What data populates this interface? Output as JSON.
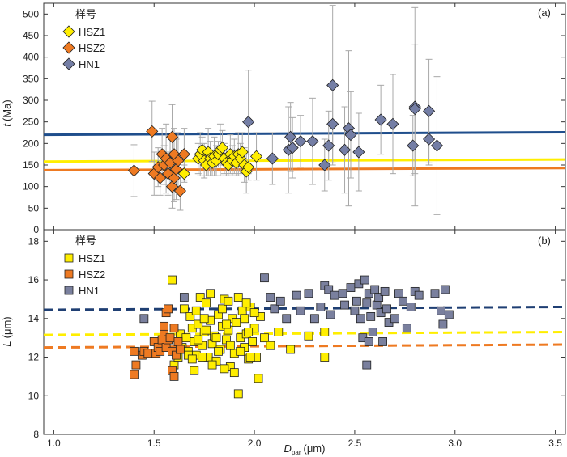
{
  "chart_data": [
    {
      "id": "a",
      "type": "scatter",
      "panel_label": "(a)",
      "ylabel_var": "t",
      "ylabel_unit": "(Ma)",
      "ylim": [
        0,
        525
      ],
      "yticks": [
        0,
        50,
        100,
        150,
        200,
        250,
        300,
        350,
        400,
        450,
        500
      ],
      "xlim": [
        0.95,
        3.55
      ],
      "legend_title": "样号",
      "legend_position": "top-left",
      "series": [
        {
          "name": "HSZ1",
          "color": "#ffee00",
          "marker": "diamond",
          "errorbars": true,
          "points": [
            [
              1.65,
              130,
              20
            ],
            [
              1.72,
              165,
              35
            ],
            [
              1.73,
              175,
              50
            ],
            [
              1.74,
              185,
              30
            ],
            [
              1.75,
              160,
              40
            ],
            [
              1.76,
              150,
              25
            ],
            [
              1.77,
              180,
              55
            ],
            [
              1.78,
              165,
              40
            ],
            [
              1.79,
              155,
              30
            ],
            [
              1.8,
              170,
              45
            ],
            [
              1.81,
              160,
              35
            ],
            [
              1.82,
              175,
              30
            ],
            [
              1.83,
              185,
              60
            ],
            [
              1.84,
              190,
              40
            ],
            [
              1.85,
              165,
              35
            ],
            [
              1.86,
              155,
              30
            ],
            [
              1.87,
              150,
              25
            ],
            [
              1.88,
              175,
              45
            ],
            [
              1.89,
              160,
              35
            ],
            [
              1.9,
              170,
              40
            ],
            [
              1.91,
              155,
              30
            ],
            [
              1.92,
              175,
              50
            ],
            [
              1.93,
              165,
              35
            ],
            [
              1.94,
              180,
              45
            ],
            [
              1.95,
              150,
              40
            ],
            [
              1.96,
              135,
              50
            ],
            [
              1.97,
              145,
              30
            ],
            [
              2.01,
              170,
              55
            ]
          ]
        },
        {
          "name": "HSZ2",
          "color": "#ee7a22",
          "marker": "diamond",
          "errorbars": true,
          "points": [
            [
              1.4,
              137,
              60
            ],
            [
              1.49,
              228,
              70
            ],
            [
              1.5,
              130,
              50
            ],
            [
              1.52,
              145,
              45
            ],
            [
              1.53,
              120,
              40
            ],
            [
              1.54,
              175,
              60
            ],
            [
              1.55,
              150,
              45
            ],
            [
              1.56,
              165,
              80
            ],
            [
              1.57,
              130,
              50
            ],
            [
              1.58,
              155,
              60
            ],
            [
              1.59,
              100,
              50
            ],
            [
              1.6,
              120,
              55
            ],
            [
              1.6,
              175,
              60
            ],
            [
              1.61,
              140,
              70
            ],
            [
              1.62,
              160,
              65
            ],
            [
              1.63,
              90,
              45
            ],
            [
              1.65,
              175,
              60
            ],
            [
              1.59,
              215,
              75
            ]
          ]
        },
        {
          "name": "HN1",
          "color": "#747ea5",
          "marker": "diamond",
          "errorbars": true,
          "points": [
            [
              1.97,
              250,
              120
            ],
            [
              2.09,
              165,
              60
            ],
            [
              2.17,
              185,
              100
            ],
            [
              2.18,
              215,
              80
            ],
            [
              2.19,
              190,
              70
            ],
            [
              2.23,
              205,
              60
            ],
            [
              2.29,
              205,
              100
            ],
            [
              2.35,
              150,
              60
            ],
            [
              2.37,
              195,
              80
            ],
            [
              2.39,
              335,
              185
            ],
            [
              2.39,
              245,
              90
            ],
            [
              2.45,
              185,
              100
            ],
            [
              2.47,
              235,
              180
            ],
            [
              2.48,
              220,
              100
            ],
            [
              2.52,
              180,
              90
            ],
            [
              2.63,
              255,
              80
            ],
            [
              2.69,
              245,
              115
            ],
            [
              2.79,
              195,
              70
            ],
            [
              2.8,
              285,
              230
            ],
            [
              2.8,
              280,
              150
            ],
            [
              2.87,
              210,
              60
            ],
            [
              2.87,
              275,
              120
            ],
            [
              2.91,
              195,
              160
            ]
          ]
        }
      ],
      "reference_lines": [
        {
          "series": "HSZ1",
          "color": "#ffee00",
          "style": "solid",
          "y": [
            158,
            163
          ]
        },
        {
          "series": "HSZ2",
          "color": "#ee7a22",
          "style": "solid",
          "y": [
            138,
            143
          ]
        },
        {
          "series": "HN1",
          "color": "#1f4e8c",
          "style": "solid",
          "y": [
            220,
            226
          ]
        }
      ]
    },
    {
      "id": "b",
      "type": "scatter",
      "panel_label": "(b)",
      "ylabel_var": "L",
      "ylabel_unit": "(μm)",
      "ylim": [
        8,
        18.6
      ],
      "yticks": [
        8,
        10,
        12,
        14,
        16,
        18
      ],
      "xlim": [
        0.95,
        3.55
      ],
      "xticks": [
        "1.0",
        "1.5",
        "2.0",
        "2.5",
        "3.0",
        "3.5"
      ],
      "xlabel_var": "D",
      "xlabel_sub": "par",
      "xlabel_unit": "(μm)",
      "legend_title": "样号",
      "legend_position": "top-left",
      "series": [
        {
          "name": "HSZ1",
          "color": "#ffee00",
          "marker": "square",
          "points": [
            [
              1.59,
              16.0
            ],
            [
              1.6,
              11.6
            ],
            [
              1.62,
              12.0
            ],
            [
              1.63,
              13.2
            ],
            [
              1.64,
              12.5
            ],
            [
              1.65,
              14.5
            ],
            [
              1.66,
              13.0
            ],
            [
              1.67,
              12.3
            ],
            [
              1.68,
              14.1
            ],
            [
              1.69,
              13.5
            ],
            [
              1.7,
              12.8
            ],
            [
              1.71,
              12.1
            ],
            [
              1.72,
              13.7
            ],
            [
              1.73,
              15.1
            ],
            [
              1.74,
              12.6
            ],
            [
              1.75,
              13.3
            ],
            [
              1.76,
              14.8
            ],
            [
              1.77,
              12.0
            ],
            [
              1.78,
              13.9
            ],
            [
              1.79,
              12.7
            ],
            [
              1.8,
              13.1
            ],
            [
              1.81,
              11.8
            ],
            [
              1.82,
              14.2
            ],
            [
              1.83,
              12.4
            ],
            [
              1.84,
              13.6
            ],
            [
              1.85,
              15.0
            ],
            [
              1.86,
              12.9
            ],
            [
              1.87,
              13.4
            ],
            [
              1.88,
              11.5
            ],
            [
              1.89,
              14.0
            ],
            [
              1.9,
              12.2
            ],
            [
              1.91,
              13.8
            ],
            [
              1.92,
              10.1
            ],
            [
              1.93,
              13.0
            ],
            [
              1.94,
              14.4
            ],
            [
              1.95,
              12.5
            ],
            [
              1.96,
              13.2
            ],
            [
              1.97,
              11.9
            ],
            [
              1.98,
              14.6
            ],
            [
              1.99,
              12.8
            ],
            [
              2.0,
              13.5
            ],
            [
              2.01,
              12.0
            ],
            [
              2.02,
              10.9
            ],
            [
              2.03,
              14.1
            ],
            [
              2.05,
              13.0
            ],
            [
              2.08,
              12.6
            ],
            [
              2.12,
              13.3
            ],
            [
              2.18,
              12.4
            ],
            [
              2.27,
              13.1
            ],
            [
              2.35,
              12.0
            ],
            [
              2.35,
              13.3
            ],
            [
              1.7,
              11.3
            ],
            [
              1.78,
              15.3
            ],
            [
              1.75,
              14.0
            ],
            [
              1.88,
              12.6
            ],
            [
              1.92,
              15.1
            ],
            [
              1.95,
              14.0
            ],
            [
              1.82,
              12.3
            ],
            [
              1.72,
              12.9
            ],
            [
              1.67,
              12.1
            ],
            [
              1.86,
              13.7
            ],
            [
              1.97,
              13.3
            ],
            [
              2.0,
              14.3
            ],
            [
              1.79,
              11.6
            ],
            [
              1.76,
              13.4
            ],
            [
              1.84,
              14.5
            ],
            [
              1.9,
              11.2
            ],
            [
              1.74,
              12.0
            ],
            [
              1.81,
              13.0
            ],
            [
              1.93,
              12.3
            ],
            [
              1.71,
              14.4
            ],
            [
              1.98,
              12.0
            ],
            [
              1.87,
              14.9
            ],
            [
              1.69,
              11.9
            ],
            [
              1.96,
              14.8
            ],
            [
              1.85,
              11.4
            ]
          ]
        },
        {
          "name": "HSZ2",
          "color": "#ee7a22",
          "marker": "square",
          "points": [
            [
              1.4,
              12.3
            ],
            [
              1.4,
              11.1
            ],
            [
              1.41,
              11.6
            ],
            [
              1.44,
              12.1
            ],
            [
              1.45,
              12.3
            ],
            [
              1.47,
              12.2
            ],
            [
              1.5,
              12.8
            ],
            [
              1.51,
              12.2
            ],
            [
              1.52,
              12.5
            ],
            [
              1.53,
              12.3
            ],
            [
              1.54,
              12.9
            ],
            [
              1.55,
              13.3
            ],
            [
              1.55,
              13.6
            ],
            [
              1.56,
              12.5
            ],
            [
              1.56,
              14.3
            ],
            [
              1.57,
              12.9
            ],
            [
              1.57,
              14.5
            ],
            [
              1.58,
              13.0
            ],
            [
              1.59,
              12.3
            ],
            [
              1.59,
              11.3
            ],
            [
              1.6,
              13.5
            ],
            [
              1.6,
              11.0
            ],
            [
              1.61,
              12.1
            ],
            [
              1.62,
              12.8
            ],
            [
              1.63,
              12.4
            ]
          ]
        },
        {
          "name": "HN1",
          "color": "#7a809e",
          "marker": "square",
          "points": [
            [
              1.45,
              14.0
            ],
            [
              1.65,
              15.1
            ],
            [
              2.05,
              16.1
            ],
            [
              2.08,
              15.1
            ],
            [
              2.1,
              14.5
            ],
            [
              2.13,
              14.9
            ],
            [
              2.16,
              14.0
            ],
            [
              2.21,
              15.2
            ],
            [
              2.23,
              14.4
            ],
            [
              2.27,
              15.3
            ],
            [
              2.3,
              14.0
            ],
            [
              2.33,
              14.6
            ],
            [
              2.35,
              15.7
            ],
            [
              2.37,
              15.5
            ],
            [
              2.38,
              14.2
            ],
            [
              2.4,
              15.2
            ],
            [
              2.45,
              14.7
            ],
            [
              2.48,
              15.6
            ],
            [
              2.5,
              14.4
            ],
            [
              2.52,
              15.8
            ],
            [
              2.53,
              14.0
            ],
            [
              2.55,
              16.0
            ],
            [
              2.56,
              14.8
            ],
            [
              2.57,
              15.3
            ],
            [
              2.58,
              14.1
            ],
            [
              2.59,
              13.3
            ],
            [
              2.6,
              15.5
            ],
            [
              2.61,
              14.7
            ],
            [
              2.62,
              15.1
            ],
            [
              2.63,
              14.3
            ],
            [
              2.64,
              12.8
            ],
            [
              2.65,
              15.4
            ],
            [
              2.66,
              14.5
            ],
            [
              2.67,
              13.8
            ],
            [
              2.72,
              15.3
            ],
            [
              2.74,
              14.9
            ],
            [
              2.76,
              13.5
            ],
            [
              2.78,
              14.6
            ],
            [
              2.8,
              15.4
            ],
            [
              2.82,
              15.2
            ],
            [
              2.9,
              15.3
            ],
            [
              2.93,
              14.4
            ],
            [
              2.94,
              13.7
            ],
            [
              2.95,
              15.5
            ],
            [
              2.97,
              14.2
            ],
            [
              2.56,
              11.6
            ],
            [
              2.54,
              13.0
            ],
            [
              2.51,
              14.9
            ],
            [
              2.44,
              15.3
            ],
            [
              2.7,
              14.0
            ],
            [
              2.57,
              12.8
            ]
          ]
        }
      ],
      "reference_lines": [
        {
          "series": "HSZ1",
          "color": "#ffee00",
          "style": "dashed",
          "y": [
            13.15,
            13.3
          ]
        },
        {
          "series": "HSZ2",
          "color": "#ee7a22",
          "style": "dashed",
          "y": [
            12.5,
            12.65
          ]
        },
        {
          "series": "HN1",
          "color": "#1f3f73",
          "style": "dashed",
          "y": [
            14.45,
            14.6
          ]
        }
      ]
    }
  ]
}
